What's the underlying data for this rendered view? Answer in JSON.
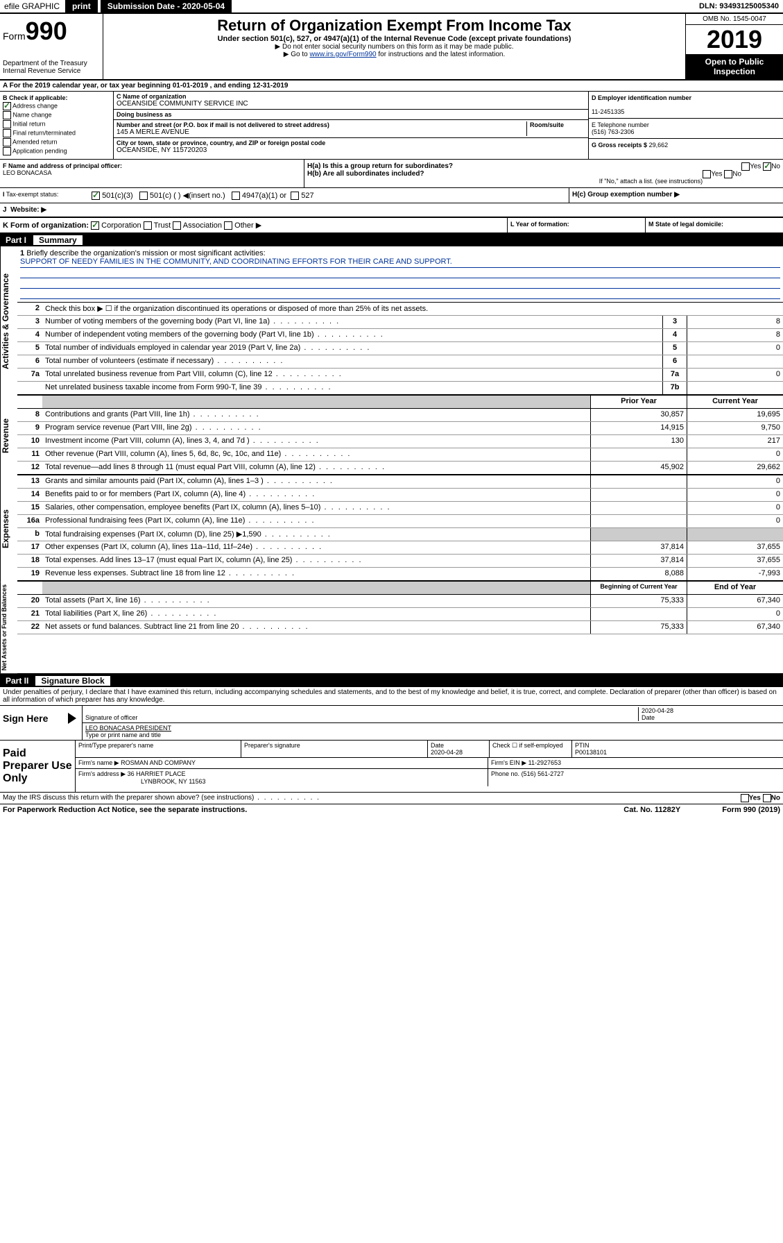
{
  "topbar": {
    "efile": "efile GRAPHIC",
    "print": "print",
    "submission": "Submission Date - 2020-05-04",
    "dln": "DLN: 93493125005340"
  },
  "header": {
    "form_prefix": "Form",
    "form_number": "990",
    "dept": "Department of the Treasury\nInternal Revenue Service",
    "title": "Return of Organization Exempt From Income Tax",
    "subtitle": "Under section 501(c), 527, or 4947(a)(1) of the Internal Revenue Code (except private foundations)",
    "note1": "▶ Do not enter social security numbers on this form as it may be made public.",
    "note2_pre": "▶ Go to ",
    "note2_link": "www.irs.gov/Form990",
    "note2_post": " for instructions and the latest information.",
    "omb": "OMB No. 1545-0047",
    "year": "2019",
    "open_public": "Open to Public Inspection"
  },
  "tax_year": "A For the 2019 calendar year, or tax year beginning 01-01-2019    , and ending 12-31-2019",
  "checkboxes": {
    "label": "B Check if applicable:",
    "address_change": "Address change",
    "name_change": "Name change",
    "initial_return": "Initial return",
    "final_return": "Final return/terminated",
    "amended_return": "Amended return",
    "application_pending": "Application pending"
  },
  "entity": {
    "name_label": "C Name of organization",
    "name": "OCEANSIDE COMMUNITY SERVICE INC",
    "dba_label": "Doing business as",
    "dba": "",
    "address_label": "Number and street (or P.O. box if mail is not delivered to street address)",
    "room_label": "Room/suite",
    "address": "145 A MERLE AVENUE",
    "city_label": "City or town, state or province, country, and ZIP or foreign postal code",
    "city": "OCEANSIDE, NY  115720203",
    "ein_label": "D Employer identification number",
    "ein": "11-2451335",
    "phone_label": "E Telephone number",
    "phone": "(516) 763-2306",
    "gross_label": "G Gross receipts $",
    "gross": "29,662"
  },
  "officer": {
    "label": "F  Name and address of principal officer:",
    "name": "LEO BONACASA",
    "h_a": "H(a)  Is this a group return for subordinates?",
    "h_a_yes": "Yes",
    "h_a_no": "No",
    "h_b": "H(b)  Are all subordinates included?",
    "h_b_yes": "Yes",
    "h_b_no": "No",
    "h_b_note": "If \"No,\" attach a list. (see instructions)",
    "h_c": "H(c)  Group exemption number ▶"
  },
  "status": {
    "label_i": "I",
    "label": "Tax-exempt status:",
    "opt1": "501(c)(3)",
    "opt2": "501(c) (  ) ◀(insert no.)",
    "opt3": "4947(a)(1) or",
    "opt4": "527",
    "label_j": "J",
    "website_label": "Website: ▶"
  },
  "form_org": {
    "label": "K Form of organization:",
    "corp": "Corporation",
    "trust": "Trust",
    "assoc": "Association",
    "other": "Other ▶",
    "year_label": "L Year of formation:",
    "state_label": "M State of legal domicile:"
  },
  "part1": {
    "label": "Part I",
    "title": "Summary"
  },
  "summary": {
    "line1_label": "1",
    "line1": "Briefly describe the organization's mission or most significant activities:",
    "mission": "SUPPORT OF NEEDY FAMILIES IN THE COMMUNITY, AND COORDINATING EFFORTS FOR THEIR CARE AND SUPPORT.",
    "line2_label": "2",
    "line2": "Check this box ▶ ☐  if the organization discontinued its operations or disposed of more than 25% of its net assets.",
    "line3_label": "3",
    "line3": "Number of voting members of the governing body (Part VI, line 1a)",
    "line3_val": "8",
    "line4_label": "4",
    "line4": "Number of independent voting members of the governing body (Part VI, line 1b)",
    "line4_val": "8",
    "line5_label": "5",
    "line5": "Total number of individuals employed in calendar year 2019 (Part V, line 2a)",
    "line5_val": "0",
    "line6_label": "6",
    "line6": "Total number of volunteers (estimate if necessary)",
    "line6_val": "",
    "line7a_label": "7a",
    "line7a": "Total unrelated business revenue from Part VIII, column (C), line 12",
    "line7a_val": "0",
    "line7b_label": "b",
    "line7b": "Net unrelated business taxable income from Form 990-T, line 39",
    "line7b_val": ""
  },
  "revenue": {
    "prior_year": "Prior Year",
    "current_year": "Current Year",
    "rows": [
      {
        "num": "8",
        "desc": "Contributions and grants (Part VIII, line 1h)",
        "prior": "30,857",
        "current": "19,695"
      },
      {
        "num": "9",
        "desc": "Program service revenue (Part VIII, line 2g)",
        "prior": "14,915",
        "current": "9,750"
      },
      {
        "num": "10",
        "desc": "Investment income (Part VIII, column (A), lines 3, 4, and 7d )",
        "prior": "130",
        "current": "217"
      },
      {
        "num": "11",
        "desc": "Other revenue (Part VIII, column (A), lines 5, 6d, 8c, 9c, 10c, and 11e)",
        "prior": "",
        "current": "0"
      },
      {
        "num": "12",
        "desc": "Total revenue—add lines 8 through 11 (must equal Part VIII, column (A), line 12)",
        "prior": "45,902",
        "current": "29,662"
      }
    ]
  },
  "expenses": {
    "rows": [
      {
        "num": "13",
        "desc": "Grants and similar amounts paid (Part IX, column (A), lines 1–3 )",
        "prior": "",
        "current": "0"
      },
      {
        "num": "14",
        "desc": "Benefits paid to or for members (Part IX, column (A), line 4)",
        "prior": "",
        "current": "0"
      },
      {
        "num": "15",
        "desc": "Salaries, other compensation, employee benefits (Part IX, column (A), lines 5–10)",
        "prior": "",
        "current": "0"
      },
      {
        "num": "16a",
        "desc": "Professional fundraising fees (Part IX, column (A), line 11e)",
        "prior": "",
        "current": "0"
      },
      {
        "num": "b",
        "desc": "Total fundraising expenses (Part IX, column (D), line 25) ▶1,590",
        "prior": "shaded",
        "current": "shaded"
      },
      {
        "num": "17",
        "desc": "Other expenses (Part IX, column (A), lines 11a–11d, 11f–24e)",
        "prior": "37,814",
        "current": "37,655"
      },
      {
        "num": "18",
        "desc": "Total expenses. Add lines 13–17 (must equal Part IX, column (A), line 25)",
        "prior": "37,814",
        "current": "37,655"
      },
      {
        "num": "19",
        "desc": "Revenue less expenses. Subtract line 18 from line 12",
        "prior": "8,088",
        "current": "-7,993"
      }
    ]
  },
  "netassets": {
    "begin_year": "Beginning of Current Year",
    "end_year": "End of Year",
    "rows": [
      {
        "num": "20",
        "desc": "Total assets (Part X, line 16)",
        "prior": "75,333",
        "current": "67,340"
      },
      {
        "num": "21",
        "desc": "Total liabilities (Part X, line 26)",
        "prior": "",
        "current": "0"
      },
      {
        "num": "22",
        "desc": "Net assets or fund balances. Subtract line 21 from line 20",
        "prior": "75,333",
        "current": "67,340"
      }
    ]
  },
  "side_labels": {
    "governance": "Activities & Governance",
    "revenue": "Revenue",
    "expenses": "Expenses",
    "netassets": "Net Assets or Fund Balances"
  },
  "part2": {
    "label": "Part II",
    "title": "Signature Block",
    "perjury": "Under penalties of perjury, I declare that I have examined this return, including accompanying schedules and statements, and to the best of my knowledge and belief, it is true, correct, and complete. Declaration of preparer (other than officer) is based on all information of which preparer has any knowledge."
  },
  "sign": {
    "label": "Sign Here",
    "sig_officer": "Signature of officer",
    "date": "2020-04-28",
    "date_label": "Date",
    "name": "LEO BONACASA PRESIDENT",
    "name_label": "Type or print name and title"
  },
  "preparer": {
    "label": "Paid Preparer Use Only",
    "name_label": "Print/Type preparer's name",
    "sig_label": "Preparer's signature",
    "date_label": "Date",
    "date": "2020-04-28",
    "check_label": "Check ☐   if self-employed",
    "ptin_label": "PTIN",
    "ptin": "P00138101",
    "firm_name_label": "Firm's name    ▶",
    "firm_name": "ROSMAN AND COMPANY",
    "firm_ein_label": "Firm's EIN ▶",
    "firm_ein": "11-2927653",
    "firm_addr_label": "Firm's address ▶",
    "firm_addr": "36 HARRIET PLACE",
    "firm_city": "LYNBROOK, NY  11563",
    "phone_label": "Phone no.",
    "phone": "(516) 561-2727"
  },
  "footer": {
    "discuss": "May the IRS discuss this return with the preparer shown above? (see instructions)",
    "yes": "Yes",
    "no": "No",
    "paperwork": "For Paperwork Reduction Act Notice, see the separate instructions.",
    "cat": "Cat. No. 11282Y",
    "form": "Form 990 (2019)"
  }
}
